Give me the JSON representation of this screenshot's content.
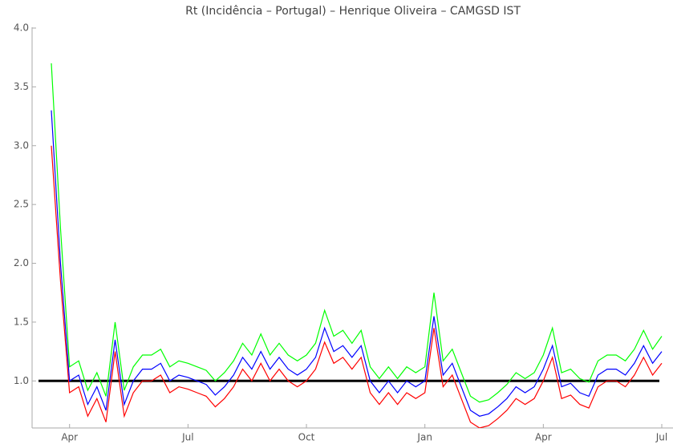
{
  "chart_data": {
    "type": "line",
    "title": "Rt (Incidência – Portugal) – Henrique Oliveira – CAMGSD IST",
    "categories": [
      null,
      null,
      "Apr",
      null,
      null,
      null,
      null,
      null,
      null,
      null,
      null,
      null,
      null,
      null,
      null,
      "Jul",
      null,
      null,
      null,
      null,
      null,
      null,
      null,
      null,
      null,
      null,
      null,
      null,
      "Oct",
      null,
      null,
      null,
      null,
      null,
      null,
      null,
      null,
      null,
      null,
      null,
      null,
      "Jan",
      null,
      null,
      null,
      null,
      null,
      null,
      null,
      null,
      null,
      null,
      null,
      null,
      "Apr",
      null,
      null,
      null,
      null,
      null,
      null,
      null,
      null,
      null,
      null,
      null,
      null,
      "Jul"
    ],
    "series": [
      {
        "color": "#ff0000",
        "values": [
          3.0,
          1.85,
          0.9,
          0.95,
          0.7,
          0.85,
          0.65,
          1.25,
          0.7,
          0.9,
          1.0,
          1.0,
          1.05,
          0.9,
          0.95,
          0.93,
          0.9,
          0.87,
          0.78,
          0.85,
          0.95,
          1.1,
          1.0,
          1.15,
          1.0,
          1.1,
          1.0,
          0.95,
          1.0,
          1.1,
          1.33,
          1.15,
          1.2,
          1.1,
          1.2,
          0.9,
          0.8,
          0.9,
          0.8,
          0.9,
          0.85,
          0.9,
          1.45,
          0.95,
          1.05,
          0.85,
          0.65,
          0.6,
          0.62,
          0.68,
          0.75,
          0.85,
          0.8,
          0.85,
          1.0,
          1.2,
          0.85,
          0.88,
          0.8,
          0.77,
          0.95,
          1.0,
          1.0,
          0.95,
          1.05,
          1.2,
          1.05,
          1.15
        ]
      },
      {
        "color": "#0000ff",
        "values": [
          3.3,
          2.0,
          1.0,
          1.05,
          0.8,
          0.95,
          0.75,
          1.35,
          0.8,
          1.0,
          1.1,
          1.1,
          1.15,
          1.0,
          1.05,
          1.03,
          1.0,
          0.97,
          0.88,
          0.95,
          1.05,
          1.2,
          1.1,
          1.25,
          1.1,
          1.2,
          1.1,
          1.05,
          1.1,
          1.2,
          1.45,
          1.25,
          1.3,
          1.2,
          1.3,
          1.0,
          0.9,
          1.0,
          0.9,
          1.0,
          0.95,
          1.0,
          1.55,
          1.05,
          1.15,
          0.95,
          0.75,
          0.7,
          0.72,
          0.78,
          0.85,
          0.95,
          0.9,
          0.95,
          1.1,
          1.3,
          0.95,
          0.98,
          0.9,
          0.87,
          1.05,
          1.1,
          1.1,
          1.05,
          1.15,
          1.3,
          1.15,
          1.25
        ]
      },
      {
        "color": "#00ff00",
        "values": [
          3.7,
          2.3,
          1.12,
          1.17,
          0.92,
          1.07,
          0.87,
          1.5,
          0.92,
          1.12,
          1.22,
          1.22,
          1.27,
          1.12,
          1.17,
          1.15,
          1.12,
          1.09,
          1.0,
          1.07,
          1.17,
          1.32,
          1.22,
          1.4,
          1.22,
          1.32,
          1.22,
          1.17,
          1.22,
          1.32,
          1.6,
          1.38,
          1.43,
          1.32,
          1.43,
          1.12,
          1.02,
          1.12,
          1.02,
          1.12,
          1.07,
          1.12,
          1.75,
          1.17,
          1.27,
          1.07,
          0.87,
          0.82,
          0.84,
          0.9,
          0.97,
          1.07,
          1.02,
          1.07,
          1.22,
          1.45,
          1.07,
          1.1,
          1.02,
          0.99,
          1.17,
          1.22,
          1.22,
          1.17,
          1.27,
          1.43,
          1.27,
          1.38
        ]
      }
    ],
    "reference_line": {
      "value": 1,
      "color": "#000000"
    },
    "ylim": [
      0.6,
      4.0
    ],
    "yticks": [
      {
        "value": 1,
        "label": "1.0"
      },
      {
        "value": 1.5,
        "label": "1.5"
      },
      {
        "value": 2,
        "label": "2.0"
      },
      {
        "value": 2.5,
        "label": "2.5"
      },
      {
        "value": 3,
        "label": "3.0"
      },
      {
        "value": 3.5,
        "label": "3.5"
      },
      {
        "value": 4,
        "label": "4.0"
      }
    ]
  }
}
